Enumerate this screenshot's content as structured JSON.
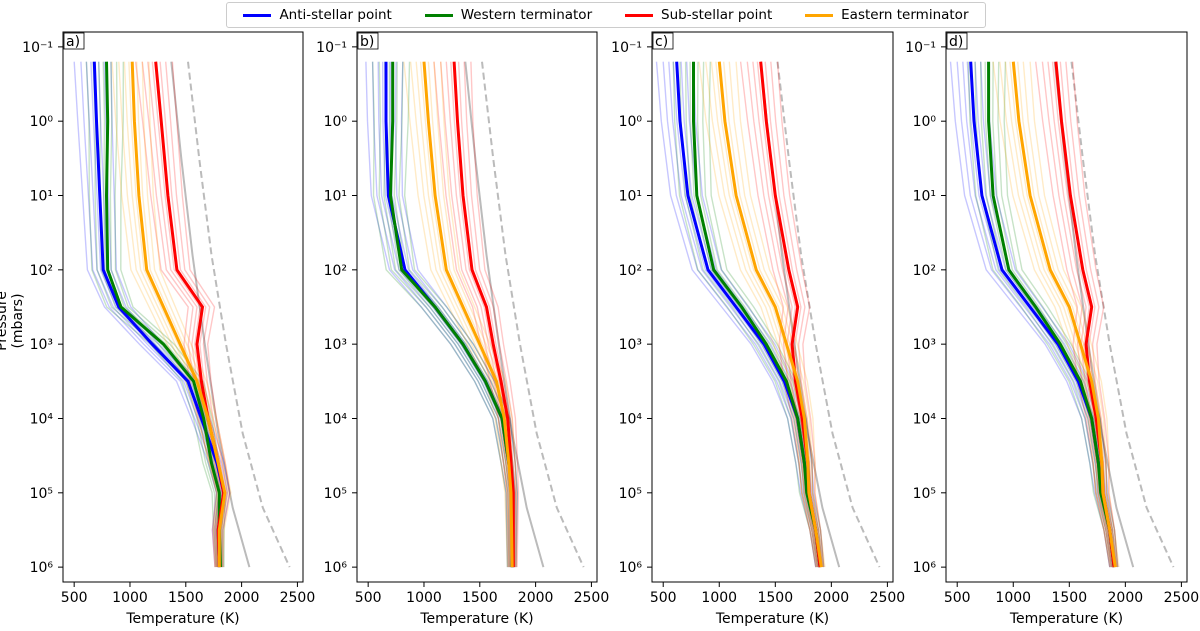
{
  "legend": [
    {
      "label": "Anti-stellar point",
      "color": "#0000ff"
    },
    {
      "label": "Western terminator",
      "color": "#008000"
    },
    {
      "label": "Sub-stellar point",
      "color": "#ff0000"
    },
    {
      "label": "Eastern terminator",
      "color": "#ffa500"
    }
  ],
  "chart_data": {
    "type": "line",
    "ylabel": "Pressure (mbars)",
    "xlabel": "Temperature (K)",
    "xlim": [
      400,
      2550
    ],
    "ylim_log10": [
      -1.2,
      6.2
    ],
    "xticks": [
      500,
      1000,
      1500,
      2000,
      2500
    ],
    "xtick_labels": [
      "500",
      "1000",
      "1500",
      "2000",
      "2500"
    ],
    "yticks_log10": [
      -1,
      0,
      1,
      2,
      3,
      4,
      5,
      6
    ],
    "ytick_labels": [
      "10⁻¹",
      "10⁰",
      "10¹",
      "10²",
      "10³",
      "10⁴",
      "10⁵",
      "10⁶"
    ],
    "panels": [
      {
        "label": "a)",
        "solid_reference": {
          "color": "#bbbbbb",
          "x": [
            1370,
            1460,
            1560,
            1670,
            1790,
            1920,
            2070
          ],
          "log10p": [
            -0.8,
            0.5,
            1.8,
            3.0,
            4.2,
            5.2,
            6.0
          ]
        },
        "dashed_reference": {
          "color": "#bbbbbb",
          "x": [
            1520,
            1620,
            1730,
            1860,
            2010,
            2190,
            2430
          ],
          "log10p": [
            -0.8,
            0.5,
            1.8,
            3.0,
            4.2,
            5.2,
            6.0
          ]
        },
        "series": [
          {
            "name": "Anti-stellar point",
            "color": "#0000ff",
            "x": [
              680,
              700,
              730,
              760,
              900,
              1200,
              1520,
              1640,
              1780,
              1840,
              1790,
              1800
            ],
            "log10p": [
              -0.8,
              0.0,
              1.0,
              2.0,
              2.5,
              3.0,
              3.5,
              4.0,
              4.6,
              5.0,
              5.5,
              6.0
            ]
          },
          {
            "name": "Western terminator",
            "color": "#008000",
            "x": [
              790,
              800,
              790,
              800,
              920,
              1300,
              1570,
              1660,
              1730,
              1800,
              1800,
              1810
            ],
            "log10p": [
              -0.8,
              0.0,
              1.0,
              2.0,
              2.5,
              3.0,
              3.5,
              4.0,
              4.6,
              5.0,
              5.5,
              6.0
            ]
          },
          {
            "name": "Sub-stellar point",
            "color": "#ff0000",
            "x": [
              1230,
              1280,
              1340,
              1420,
              1650,
              1600,
              1640,
              1700,
              1790,
              1840,
              1790,
              1800
            ],
            "log10p": [
              -0.8,
              0.0,
              1.0,
              2.0,
              2.5,
              3.0,
              3.5,
              4.0,
              4.6,
              5.0,
              5.5,
              6.0
            ]
          },
          {
            "name": "Eastern terminator",
            "color": "#ffa500",
            "x": [
              1020,
              1040,
              1080,
              1150,
              1300,
              1450,
              1600,
              1700,
              1790,
              1850,
              1800,
              1800
            ],
            "log10p": [
              -0.8,
              0.0,
              1.0,
              2.0,
              2.5,
              3.0,
              3.5,
              4.0,
              4.6,
              5.0,
              5.5,
              6.0
            ]
          }
        ]
      },
      {
        "label": "b)",
        "solid_reference": {
          "color": "#bbbbbb",
          "x": [
            1370,
            1460,
            1560,
            1670,
            1790,
            1920,
            2070
          ],
          "log10p": [
            -0.8,
            0.5,
            1.8,
            3.0,
            4.2,
            5.2,
            6.0
          ]
        },
        "dashed_reference": {
          "color": "#bbbbbb",
          "x": [
            1520,
            1620,
            1730,
            1860,
            2010,
            2190,
            2430
          ],
          "log10p": [
            -0.8,
            0.5,
            1.8,
            3.0,
            4.2,
            5.2,
            6.0
          ]
        },
        "series": [
          {
            "name": "Anti-stellar point",
            "color": "#0000ff",
            "x": [
              660,
              660,
              680,
              830,
              1100,
              1350,
              1550,
              1700,
              1760,
              1790,
              1790
            ],
            "log10p": [
              -0.8,
              0.0,
              1.0,
              2.0,
              2.5,
              3.0,
              3.5,
              4.0,
              4.6,
              5.0,
              6.0
            ]
          },
          {
            "name": "Western terminator",
            "color": "#008000",
            "x": [
              720,
              720,
              700,
              800,
              1100,
              1350,
              1550,
              1700,
              1760,
              1790,
              1790
            ],
            "log10p": [
              -0.8,
              0.0,
              1.0,
              2.0,
              2.5,
              3.0,
              3.5,
              4.0,
              4.6,
              5.0,
              6.0
            ]
          },
          {
            "name": "Sub-stellar point",
            "color": "#ff0000",
            "x": [
              1270,
              1300,
              1350,
              1430,
              1560,
              1620,
              1690,
              1750,
              1780,
              1800,
              1800
            ],
            "log10p": [
              -0.8,
              0.0,
              1.0,
              2.0,
              2.5,
              3.0,
              3.5,
              4.0,
              4.6,
              5.0,
              6.0
            ]
          },
          {
            "name": "Eastern terminator",
            "color": "#ffa500",
            "x": [
              1000,
              1040,
              1100,
              1200,
              1350,
              1500,
              1650,
              1720,
              1760,
              1780,
              1790
            ],
            "log10p": [
              -0.8,
              0.0,
              1.0,
              2.0,
              2.5,
              3.0,
              3.5,
              4.0,
              4.6,
              5.0,
              6.0
            ]
          }
        ]
      },
      {
        "label": "c)",
        "solid_reference": {
          "color": "#bbbbbb",
          "x": [
            1370,
            1460,
            1560,
            1670,
            1790,
            1920,
            2070
          ],
          "log10p": [
            -0.8,
            0.5,
            1.8,
            3.0,
            4.2,
            5.2,
            6.0
          ]
        },
        "dashed_reference": {
          "color": "#bbbbbb",
          "x": [
            1520,
            1620,
            1730,
            1860,
            2010,
            2190,
            2430
          ],
          "log10p": [
            -0.8,
            0.5,
            1.8,
            3.0,
            4.2,
            5.2,
            6.0
          ]
        },
        "series": [
          {
            "name": "Anti-stellar point",
            "color": "#0000ff",
            "x": [
              620,
              650,
              720,
              900,
              1150,
              1400,
              1580,
              1700,
              1760,
              1790,
              1860,
              1900
            ],
            "log10p": [
              -0.8,
              0.0,
              1.0,
              2.0,
              2.5,
              3.0,
              3.5,
              4.0,
              4.6,
              5.0,
              5.5,
              6.0
            ]
          },
          {
            "name": "Western terminator",
            "color": "#008000",
            "x": [
              770,
              770,
              800,
              950,
              1200,
              1420,
              1600,
              1700,
              1760,
              1780,
              1860,
              1900
            ],
            "log10p": [
              -0.8,
              0.0,
              1.0,
              2.0,
              2.5,
              3.0,
              3.5,
              4.0,
              4.6,
              5.0,
              5.5,
              6.0
            ]
          },
          {
            "name": "Sub-stellar point",
            "color": "#ff0000",
            "x": [
              1370,
              1420,
              1500,
              1620,
              1700,
              1650,
              1680,
              1740,
              1790,
              1800,
              1860,
              1900
            ],
            "log10p": [
              -0.8,
              0.0,
              1.0,
              2.0,
              2.5,
              3.0,
              3.5,
              4.0,
              4.6,
              5.0,
              5.5,
              6.0
            ]
          },
          {
            "name": "Eastern terminator",
            "color": "#ffa500",
            "x": [
              1000,
              1050,
              1150,
              1330,
              1500,
              1600,
              1700,
              1760,
              1790,
              1800,
              1860,
              1910
            ],
            "log10p": [
              -0.8,
              0.0,
              1.0,
              2.0,
              2.5,
              3.0,
              3.5,
              4.0,
              4.6,
              5.0,
              5.5,
              6.0
            ]
          }
        ]
      },
      {
        "label": "d)",
        "solid_reference": {
          "color": "#bbbbbb",
          "x": [
            1370,
            1460,
            1560,
            1670,
            1790,
            1920,
            2070
          ],
          "log10p": [
            -0.8,
            0.5,
            1.8,
            3.0,
            4.2,
            5.2,
            6.0
          ]
        },
        "dashed_reference": {
          "color": "#bbbbbb",
          "x": [
            1520,
            1620,
            1730,
            1860,
            2010,
            2190,
            2430
          ],
          "log10p": [
            -0.8,
            0.5,
            1.8,
            3.0,
            4.2,
            5.2,
            6.0
          ]
        },
        "series": [
          {
            "name": "Anti-stellar point",
            "color": "#0000ff",
            "x": [
              620,
              650,
              720,
              900,
              1150,
              1400,
              1580,
              1700,
              1760,
              1790,
              1860,
              1900
            ],
            "log10p": [
              -0.8,
              0.0,
              1.0,
              2.0,
              2.5,
              3.0,
              3.5,
              4.0,
              4.6,
              5.0,
              5.5,
              6.0
            ]
          },
          {
            "name": "Western terminator",
            "color": "#008000",
            "x": [
              780,
              780,
              820,
              960,
              1200,
              1420,
              1600,
              1700,
              1760,
              1780,
              1860,
              1900
            ],
            "log10p": [
              -0.8,
              0.0,
              1.0,
              2.0,
              2.5,
              3.0,
              3.5,
              4.0,
              4.6,
              5.0,
              5.5,
              6.0
            ]
          },
          {
            "name": "Sub-stellar point",
            "color": "#ff0000",
            "x": [
              1380,
              1430,
              1510,
              1620,
              1700,
              1650,
              1680,
              1740,
              1790,
              1800,
              1860,
              1900
            ],
            "log10p": [
              -0.8,
              0.0,
              1.0,
              2.0,
              2.5,
              3.0,
              3.5,
              4.0,
              4.6,
              5.0,
              5.5,
              6.0
            ]
          },
          {
            "name": "Eastern terminator",
            "color": "#ffa500",
            "x": [
              1000,
              1050,
              1150,
              1330,
              1500,
              1600,
              1700,
              1760,
              1790,
              1800,
              1860,
              1910
            ],
            "log10p": [
              -0.8,
              0.0,
              1.0,
              2.0,
              2.5,
              3.0,
              3.5,
              4.0,
              4.6,
              5.0,
              5.5,
              6.0
            ]
          }
        ]
      }
    ]
  }
}
